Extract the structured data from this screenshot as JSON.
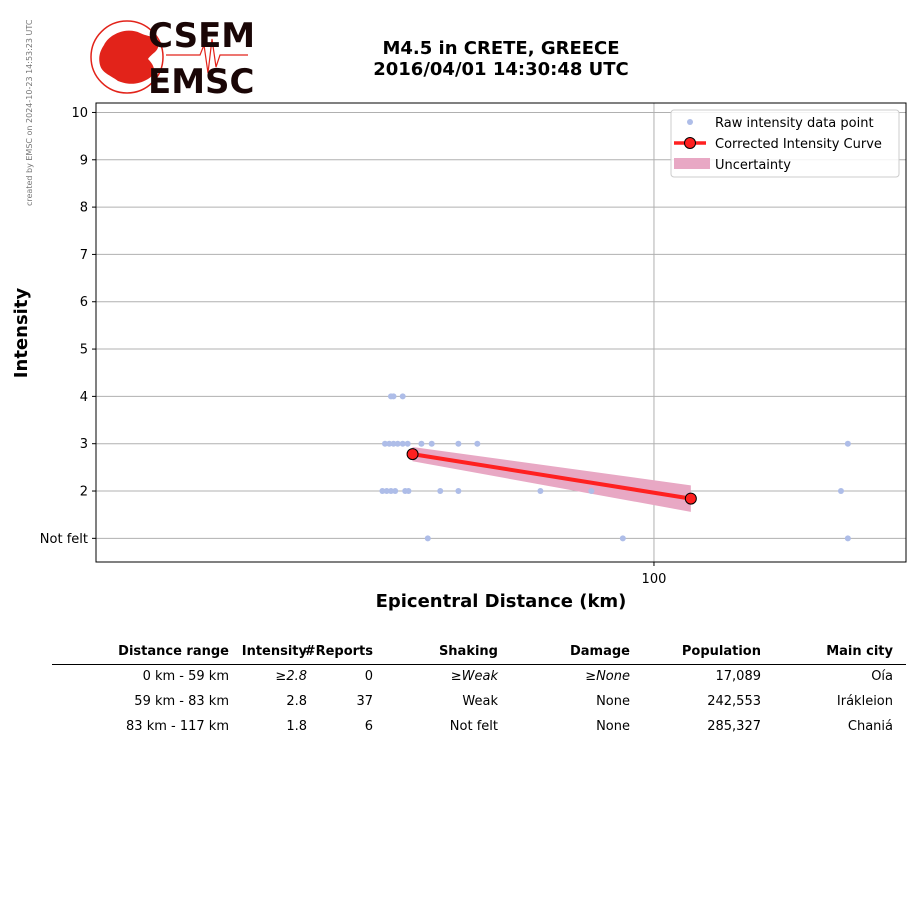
{
  "credit": "created by EMSC on 2024-10-23 14:53:23 UTC",
  "logo": {
    "top_text": "CSEM",
    "bottom_text": "EMSC",
    "colors": {
      "red": "#e2231a",
      "dark": "#1a0606"
    }
  },
  "title": {
    "line1": "M4.5 in CRETE, GREECE",
    "line2": "2016/04/01 14:30:48 UTC"
  },
  "chart_data": {
    "type": "scatter",
    "xlabel": "Epicentral Distance (km)",
    "ylabel": "Intensity",
    "x_scale": "log",
    "xlim": [
      33,
      165
    ],
    "ylim": [
      0.5,
      10.2
    ],
    "x_ticks": [
      {
        "value": 100,
        "label": "100"
      }
    ],
    "y_ticks": [
      {
        "value": 1,
        "label": "Not felt"
      },
      {
        "value": 2,
        "label": "2"
      },
      {
        "value": 3,
        "label": "3"
      },
      {
        "value": 4,
        "label": "4"
      },
      {
        "value": 5,
        "label": "5"
      },
      {
        "value": 6,
        "label": "6"
      },
      {
        "value": 7,
        "label": "7"
      },
      {
        "value": 8,
        "label": "8"
      },
      {
        "value": 9,
        "label": "9"
      },
      {
        "value": 10,
        "label": "10"
      }
    ],
    "grid": true,
    "legend": {
      "placement": "top-right",
      "entries": [
        {
          "label": "Raw intensity data point",
          "symbol": "dot",
          "color": "#aebde8"
        },
        {
          "label": "Corrected Intensity Curve",
          "symbol": "line-circle",
          "color": "#ff2020"
        },
        {
          "label": "Uncertainty",
          "symbol": "band",
          "color": "#e8a8c4"
        }
      ]
    },
    "series": [
      {
        "name": "Raw intensity data point",
        "color": "#aebde8",
        "points": [
          [
            59.3,
            4
          ],
          [
            59.6,
            4
          ],
          [
            60.7,
            4
          ],
          [
            58.6,
            3
          ],
          [
            59.1,
            3
          ],
          [
            59.6,
            3
          ],
          [
            60.1,
            3
          ],
          [
            60.7,
            3
          ],
          [
            61.3,
            3
          ],
          [
            63.0,
            3
          ],
          [
            64.3,
            3
          ],
          [
            67.8,
            3
          ],
          [
            70.4,
            3
          ],
          [
            147.0,
            3
          ],
          [
            58.3,
            2
          ],
          [
            58.8,
            2
          ],
          [
            59.3,
            2
          ],
          [
            59.8,
            2
          ],
          [
            61.0,
            2
          ],
          [
            61.4,
            2
          ],
          [
            65.4,
            2
          ],
          [
            67.8,
            2
          ],
          [
            79.8,
            2
          ],
          [
            88.3,
            2
          ],
          [
            145.0,
            2
          ],
          [
            63.8,
            1
          ],
          [
            94.0,
            1
          ],
          [
            147.0,
            1
          ]
        ]
      },
      {
        "name": "Corrected Intensity Curve",
        "color": "#ff2020",
        "points": [
          [
            61.9,
            2.78
          ],
          [
            107.6,
            1.84
          ]
        ]
      },
      {
        "name": "Uncertainty",
        "color": "#e8a8c4",
        "upper": [
          [
            61.9,
            2.93
          ],
          [
            107.6,
            2.12
          ]
        ],
        "lower": [
          [
            61.9,
            2.63
          ],
          [
            107.6,
            1.56
          ]
        ]
      }
    ]
  },
  "table": {
    "headers": [
      "Distance range",
      "Intensity",
      "#Reports",
      "Shaking",
      "Damage",
      "Population",
      "Main city"
    ],
    "rows": [
      {
        "distance": "0 km -   59 km",
        "intensity": "≥2.8",
        "reports": "0",
        "shaking": "≥Weak",
        "damage": "≥None",
        "population": "17,089",
        "city": "Oía",
        "italic": true
      },
      {
        "distance": "59 km -   83 km",
        "intensity": "2.8",
        "reports": "37",
        "shaking": "Weak",
        "damage": "None",
        "population": "242,553",
        "city": "Irákleion",
        "italic": false
      },
      {
        "distance": "83 km -  117 km",
        "intensity": "1.8",
        "reports": "6",
        "shaking": "Not felt",
        "damage": "None",
        "population": "285,327",
        "city": "Chaniá",
        "italic": false
      }
    ]
  }
}
